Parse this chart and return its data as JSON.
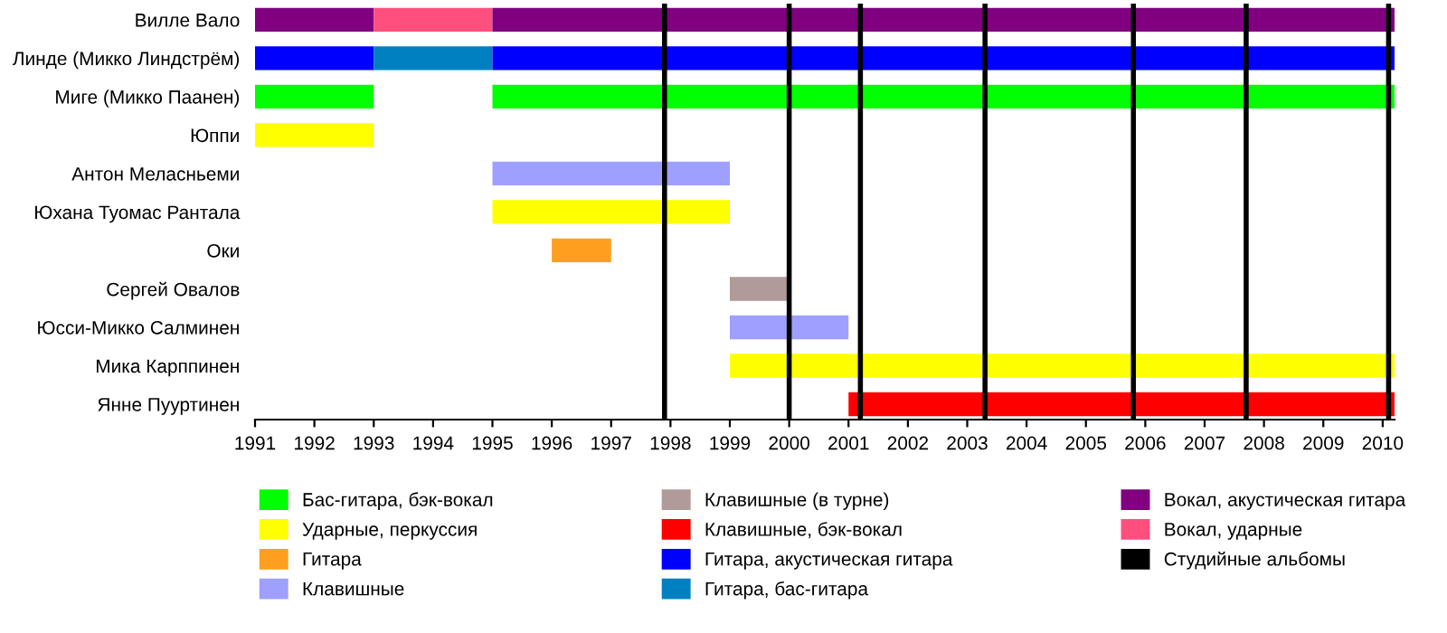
{
  "chart_data": {
    "type": "bar",
    "orientation": "horizontal",
    "categories": [
      "Вилле Вало",
      "Линде (Микко Линдстрём)",
      "Миге (Микко Паанен)",
      "Юппи",
      "Антон Меласньеми",
      "Юхана Туомас Рантала",
      "Оки",
      "Сергей Овалов",
      "Юсси-Микко Салминен",
      "Мика Карппинен",
      "Янне Пууртинен"
    ],
    "series": [
      {
        "name": "Бас-гитара, бэк-вокал",
        "color": "#00ff00",
        "values": [
          null,
          null,
          2,
          null,
          null,
          null,
          null,
          null,
          null,
          null,
          null
        ],
        "base": [
          null,
          null,
          1991,
          null,
          null,
          null,
          null,
          null,
          null,
          null,
          null
        ]
      },
      {
        "name": "Ударные, перкуссия",
        "color": "#ffff00",
        "values": [
          null,
          null,
          null,
          2,
          null,
          4,
          null,
          null,
          null,
          11.2,
          null
        ],
        "base": [
          null,
          null,
          null,
          1991,
          null,
          1995,
          null,
          null,
          null,
          1999,
          null
        ]
      },
      {
        "name": "Гитара",
        "color": "#ff9f1f",
        "values": [
          null,
          null,
          null,
          null,
          null,
          null,
          1,
          null,
          null,
          null,
          null
        ],
        "base": [
          null,
          null,
          null,
          null,
          null,
          null,
          1996,
          null,
          null,
          null,
          null
        ]
      },
      {
        "name": "Клавишные",
        "color": "#9f9fff",
        "values": [
          null,
          null,
          null,
          null,
          4,
          null,
          null,
          null,
          2,
          null,
          null
        ],
        "base": [
          null,
          null,
          null,
          null,
          1995,
          null,
          null,
          null,
          1999,
          null,
          null
        ]
      },
      {
        "name": "Клавишные (в турне)",
        "color": "#b09a9a",
        "values": [
          null,
          null,
          null,
          null,
          null,
          null,
          null,
          1,
          null,
          null,
          null
        ],
        "base": [
          null,
          null,
          null,
          null,
          null,
          null,
          null,
          1999,
          null,
          null,
          null
        ]
      },
      {
        "name": "Клавишные, бэк-вокал",
        "color": "#ff0000",
        "values": [
          null,
          null,
          null,
          null,
          null,
          null,
          null,
          null,
          null,
          null,
          9.2
        ],
        "base": [
          null,
          null,
          null,
          null,
          null,
          null,
          null,
          null,
          null,
          null,
          2001
        ]
      },
      {
        "name": "Гитара, акустическая гитара",
        "color": "#0000ff",
        "values": [
          null,
          2,
          null,
          null,
          null,
          null,
          null,
          null,
          null,
          null,
          null
        ],
        "base": [
          null,
          1991,
          null,
          null,
          null,
          null,
          null,
          null,
          null,
          null,
          null
        ]
      },
      {
        "name": "Гитара, бас-гитара",
        "color": "#0080c0",
        "values": [
          null,
          2,
          null,
          null,
          null,
          null,
          null,
          null,
          null,
          null,
          null
        ],
        "base": [
          null,
          1993,
          null,
          null,
          null,
          null,
          null,
          null,
          null,
          null,
          null
        ]
      },
      {
        "name": "Вокал, акустическая гитара",
        "color": "#800080",
        "values": [
          2,
          null,
          null,
          null,
          null,
          null,
          null,
          null,
          null,
          null,
          null
        ],
        "base": [
          1991,
          null,
          null,
          null,
          null,
          null,
          null,
          null,
          null,
          null,
          null
        ]
      },
      {
        "name": "Вокал, ударные",
        "color": "#ff4f7f",
        "values": [
          2,
          null,
          null,
          null,
          null,
          null,
          null,
          null,
          null,
          null,
          null
        ],
        "base": [
          1993,
          null,
          null,
          null,
          null,
          null,
          null,
          null,
          null,
          null,
          null
        ]
      },
      {
        "color": "#00ff00",
        "values": [
          null,
          null,
          15.2,
          null,
          null,
          null,
          null,
          null,
          null,
          null,
          null
        ],
        "base": [
          null,
          null,
          1995,
          null,
          null,
          null,
          null,
          null,
          null,
          null,
          null
        ]
      },
      {
        "color": "#0000ff",
        "values": [
          null,
          15.2,
          null,
          null,
          null,
          null,
          null,
          null,
          null,
          null,
          null
        ],
        "base": [
          null,
          1995,
          null,
          null,
          null,
          null,
          null,
          null,
          null,
          null,
          null
        ]
      },
      {
        "color": "#800080",
        "values": [
          15.2,
          null,
          null,
          null,
          null,
          null,
          null,
          null,
          null,
          null,
          null
        ],
        "base": [
          1995,
          null,
          null,
          null,
          null,
          null,
          null,
          null,
          null,
          null,
          null
        ]
      }
    ],
    "ref_lines": [
      {
        "axis": "x",
        "value": 1997.9,
        "color": "#000000",
        "label": "Студийные альбомы"
      },
      {
        "axis": "x",
        "value": 2000.0,
        "color": "#000000"
      },
      {
        "axis": "x",
        "value": 2001.2,
        "color": "#000000"
      },
      {
        "axis": "x",
        "value": 2003.3,
        "color": "#000000"
      },
      {
        "axis": "x",
        "value": 2005.8,
        "color": "#000000"
      },
      {
        "axis": "x",
        "value": 2007.7,
        "color": "#000000"
      },
      {
        "axis": "x",
        "value": 2010.1,
        "color": "#000000"
      }
    ],
    "xlim": [
      1991,
      2010.2
    ],
    "xticks": [
      1991,
      1992,
      1993,
      1994,
      1995,
      1996,
      1997,
      1998,
      1999,
      2000,
      2001,
      2002,
      2003,
      2004,
      2005,
      2006,
      2007,
      2008,
      2009,
      2010
    ],
    "grid": false,
    "legend": "bottom"
  }
}
